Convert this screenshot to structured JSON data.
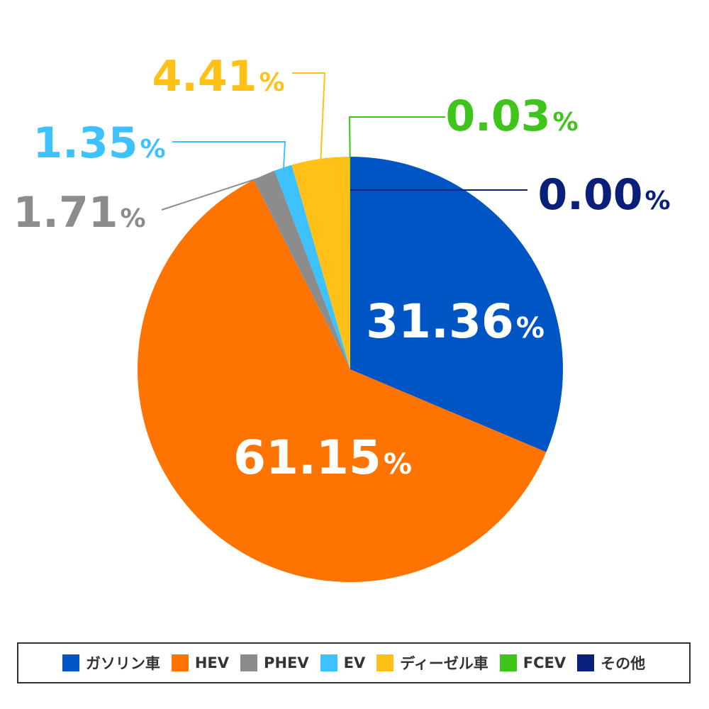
{
  "chart_data": {
    "type": "pie",
    "categories": [
      "ガソリン車",
      "HEV",
      "PHEV",
      "EV",
      "ディーゼル車",
      "FCEV",
      "その他"
    ],
    "values": [
      31.36,
      61.15,
      1.71,
      1.35,
      4.41,
      0.03,
      0.0
    ],
    "value_labels": [
      "31.36",
      "61.15",
      "1.71",
      "1.35",
      "4.41",
      "0.03",
      "0.00"
    ],
    "unit": "%",
    "colors": [
      "#0055c4",
      "#ff7300",
      "#8c8c8c",
      "#3ec2ff",
      "#ffc018",
      "#3fc41c",
      "#0a1f7a"
    ],
    "start": "12 o'clock",
    "direction": "clockwise",
    "legend_position": "bottom"
  }
}
